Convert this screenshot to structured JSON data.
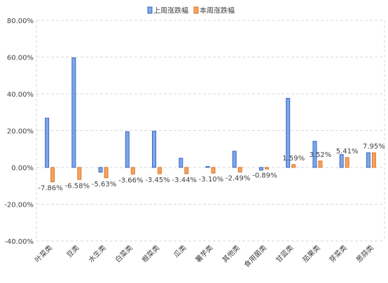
{
  "colors": {
    "series1_fill": "#7da7e8",
    "series1_stroke": "#3a66c4",
    "series2_fill": "#f6a25c",
    "series2_stroke": "#d77a2e",
    "grid": "#d9d9d9",
    "axis_text": "#404040"
  },
  "chart_data": {
    "type": "bar",
    "title": "",
    "xlabel": "",
    "ylabel": "",
    "categories": [
      "叶菜类",
      "豆类",
      "水生类",
      "白菜类",
      "根菜类",
      "瓜类",
      "薯芋类",
      "其他类",
      "食用菌类",
      "甘蓝类",
      "茄果类",
      "芽菜类",
      "葱蒜类"
    ],
    "series": [
      {
        "name": "上周涨跌幅",
        "values": [
          26.8,
          59.6,
          -2.6,
          19.4,
          19.7,
          5.0,
          0.5,
          8.8,
          -1.5,
          37.6,
          14.2,
          7.0,
          8.0
        ]
      },
      {
        "name": "本周涨跌幅",
        "values": [
          -7.86,
          -6.58,
          -5.63,
          -3.66,
          -3.45,
          -3.44,
          -3.1,
          -2.49,
          -0.89,
          1.59,
          3.52,
          5.41,
          7.95
        ],
        "data_labels": [
          "-7.86%",
          "-6.58%",
          "-5.63%",
          "-3.66%",
          "-3.45%",
          "-3.44%",
          "-3.10%",
          "-2.49%",
          "-0.89%",
          "1.59%",
          "3.52%",
          "5.41%",
          "7.95%"
        ]
      }
    ],
    "ylim": [
      -40,
      80
    ],
    "y_ticks": [
      80,
      60,
      40,
      20,
      0,
      -20,
      -40
    ],
    "y_tick_labels": [
      "80.00%",
      "60.00%",
      "40.00%",
      "20.00%",
      "0.00%",
      "-20.00%",
      "-40.00%"
    ],
    "grid": true,
    "legend_position": "top-center"
  }
}
